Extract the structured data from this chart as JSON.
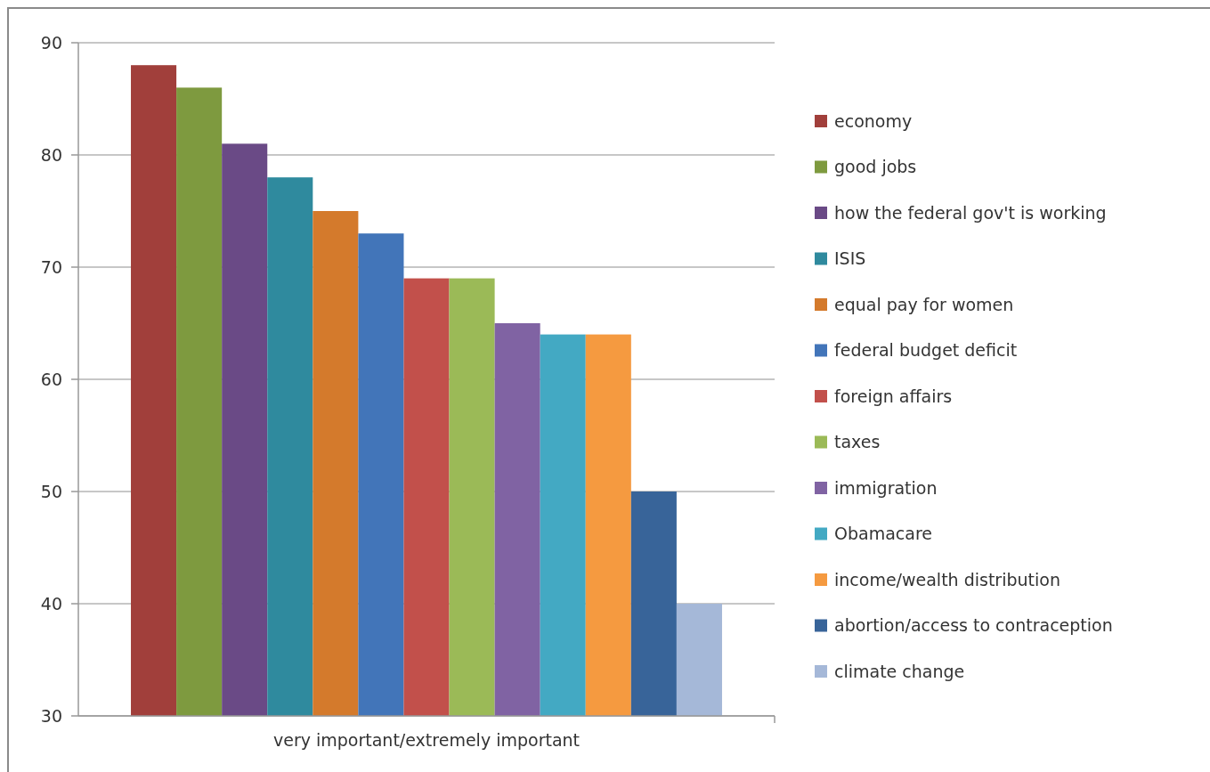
{
  "chart_data": {
    "type": "bar",
    "xlabel": null,
    "categories": [
      "very important/extremely important"
    ],
    "series": [
      {
        "name": "economy",
        "color": "#a13f3b",
        "values": [
          88
        ]
      },
      {
        "name": "good jobs",
        "color": "#7e9a3f",
        "values": [
          86
        ]
      },
      {
        "name": "how the federal gov't is working",
        "color": "#6a4a86",
        "values": [
          81
        ]
      },
      {
        "name": "ISIS",
        "color": "#2f8a9e",
        "values": [
          78
        ]
      },
      {
        "name": "equal pay for women",
        "color": "#d47a2c",
        "values": [
          75
        ]
      },
      {
        "name": "federal budget deficit",
        "color": "#4275b9",
        "values": [
          73
        ]
      },
      {
        "name": "foreign affairs",
        "color": "#c2504b",
        "values": [
          69
        ]
      },
      {
        "name": "taxes",
        "color": "#9bba57",
        "values": [
          69
        ]
      },
      {
        "name": "immigration",
        "color": "#8063a3",
        "values": [
          65
        ]
      },
      {
        "name": "Obamacare",
        "color": "#43a9c3",
        "values": [
          64
        ]
      },
      {
        "name": "income/wealth distribution",
        "color": "#f59a40",
        "values": [
          64
        ]
      },
      {
        "name": "abortion/access to contraception",
        "color": "#386499",
        "values": [
          50
        ]
      },
      {
        "name": "climate change",
        "color": "#a5b8d8",
        "values": [
          40
        ]
      }
    ],
    "ylim": [
      30,
      90
    ],
    "yticks": [
      30,
      40,
      50,
      60,
      70,
      80,
      90
    ],
    "grid": "y",
    "legend": "right"
  }
}
